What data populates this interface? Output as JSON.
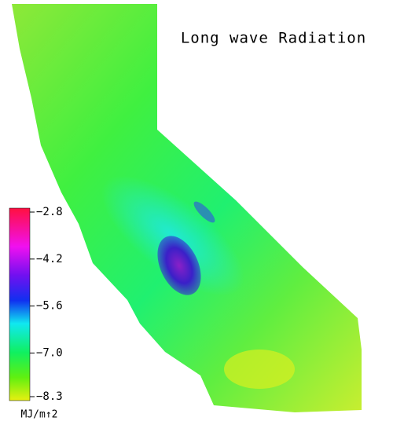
{
  "title": "Long wave Radiation",
  "colorbar": {
    "ticks": [
      {
        "value": -2.8,
        "label": "−2.8"
      },
      {
        "value": -4.2,
        "label": "−4.2"
      },
      {
        "value": -5.6,
        "label": "−5.6"
      },
      {
        "value": -7.0,
        "label": "−7.0"
      },
      {
        "value": -8.3,
        "label": "−8.3"
      }
    ],
    "unit": "MJ/m↑2"
  }
}
